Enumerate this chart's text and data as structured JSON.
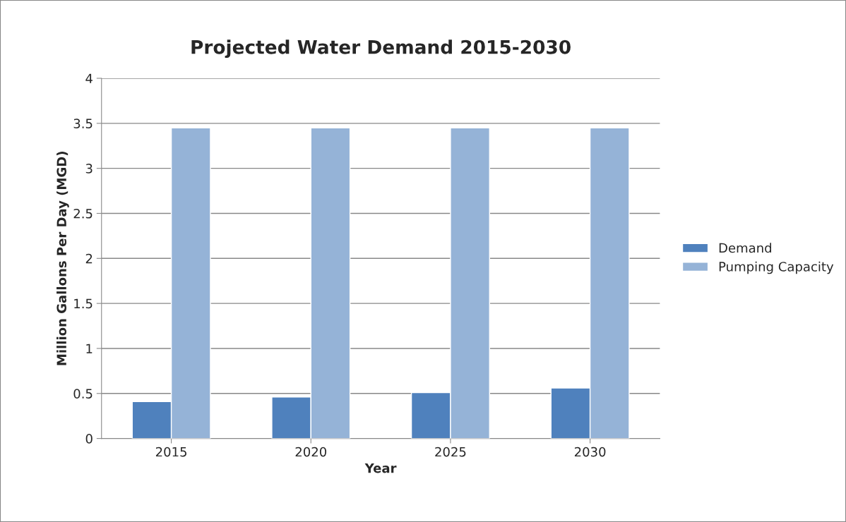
{
  "chart_data": {
    "type": "bar",
    "title": "Projected Water Demand 2015-2030",
    "xlabel": "Year",
    "ylabel": "Million Gallons Per Day (MGD)",
    "categories": [
      "2015",
      "2020",
      "2025",
      "2030"
    ],
    "series": [
      {
        "name": "Demand",
        "color": "#4f81bd",
        "values": [
          0.41,
          0.46,
          0.51,
          0.56
        ]
      },
      {
        "name": "Pumping Capacity",
        "color": "#95b3d7",
        "values": [
          3.45,
          3.45,
          3.45,
          3.45
        ]
      }
    ],
    "ylim": [
      0,
      4
    ],
    "yticks": [
      0,
      {
        "value": 0.5,
        "label": "0.5"
      },
      1,
      {
        "value": 1.5,
        "label": "1.5"
      },
      2,
      {
        "value": 2.5,
        "label": "2.5"
      },
      3,
      {
        "value": 3.5,
        "label": "3.5"
      },
      4
    ],
    "grid": "y",
    "legend": "right"
  }
}
